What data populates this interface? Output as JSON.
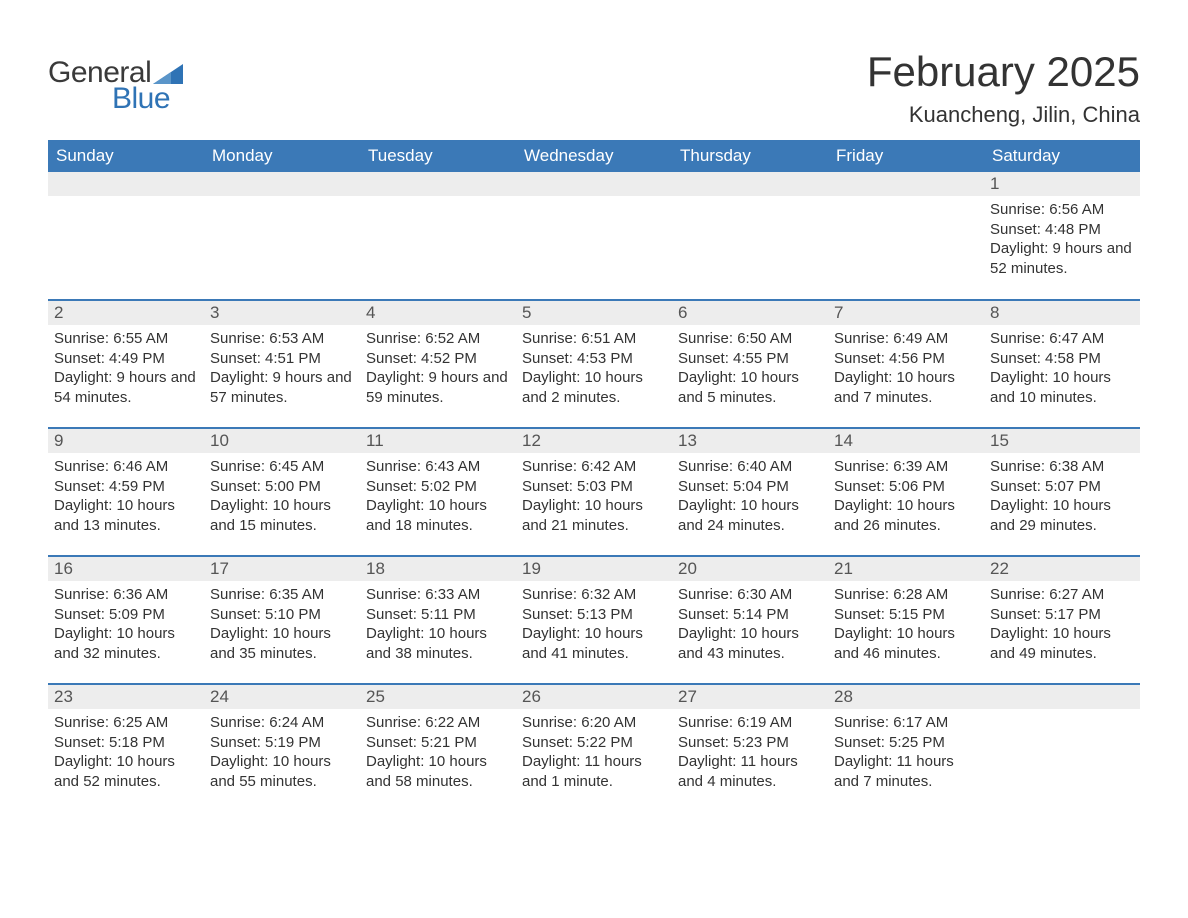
{
  "brand": {
    "word1": "General",
    "word2": "Blue",
    "flag_color": "#2f73b5",
    "word1_color": "#3a3a3a",
    "word2_color": "#2f73b5"
  },
  "header": {
    "month_title": "February 2025",
    "location": "Kuancheng, Jilin, China"
  },
  "styling": {
    "header_bg": "#3b79b7",
    "header_text": "#ffffff",
    "row_divider": "#3b79b7",
    "daynum_bg": "#ededed",
    "body_bg": "#ffffff",
    "text_color": "#333333",
    "title_fontsize": 42,
    "location_fontsize": 22,
    "weekday_fontsize": 17,
    "body_fontsize": 15,
    "columns": 7
  },
  "weekdays": [
    "Sunday",
    "Monday",
    "Tuesday",
    "Wednesday",
    "Thursday",
    "Friday",
    "Saturday"
  ],
  "labels": {
    "sunrise_prefix": "Sunrise: ",
    "sunset_prefix": "Sunset: ",
    "daylight_prefix": "Daylight: "
  },
  "weeks": [
    [
      null,
      null,
      null,
      null,
      null,
      null,
      {
        "day": "1",
        "sunrise": "6:56 AM",
        "sunset": "4:48 PM",
        "daylight": "9 hours and 52 minutes."
      }
    ],
    [
      {
        "day": "2",
        "sunrise": "6:55 AM",
        "sunset": "4:49 PM",
        "daylight": "9 hours and 54 minutes."
      },
      {
        "day": "3",
        "sunrise": "6:53 AM",
        "sunset": "4:51 PM",
        "daylight": "9 hours and 57 minutes."
      },
      {
        "day": "4",
        "sunrise": "6:52 AM",
        "sunset": "4:52 PM",
        "daylight": "9 hours and 59 minutes."
      },
      {
        "day": "5",
        "sunrise": "6:51 AM",
        "sunset": "4:53 PM",
        "daylight": "10 hours and 2 minutes."
      },
      {
        "day": "6",
        "sunrise": "6:50 AM",
        "sunset": "4:55 PM",
        "daylight": "10 hours and 5 minutes."
      },
      {
        "day": "7",
        "sunrise": "6:49 AM",
        "sunset": "4:56 PM",
        "daylight": "10 hours and 7 minutes."
      },
      {
        "day": "8",
        "sunrise": "6:47 AM",
        "sunset": "4:58 PM",
        "daylight": "10 hours and 10 minutes."
      }
    ],
    [
      {
        "day": "9",
        "sunrise": "6:46 AM",
        "sunset": "4:59 PM",
        "daylight": "10 hours and 13 minutes."
      },
      {
        "day": "10",
        "sunrise": "6:45 AM",
        "sunset": "5:00 PM",
        "daylight": "10 hours and 15 minutes."
      },
      {
        "day": "11",
        "sunrise": "6:43 AM",
        "sunset": "5:02 PM",
        "daylight": "10 hours and 18 minutes."
      },
      {
        "day": "12",
        "sunrise": "6:42 AM",
        "sunset": "5:03 PM",
        "daylight": "10 hours and 21 minutes."
      },
      {
        "day": "13",
        "sunrise": "6:40 AM",
        "sunset": "5:04 PM",
        "daylight": "10 hours and 24 minutes."
      },
      {
        "day": "14",
        "sunrise": "6:39 AM",
        "sunset": "5:06 PM",
        "daylight": "10 hours and 26 minutes."
      },
      {
        "day": "15",
        "sunrise": "6:38 AM",
        "sunset": "5:07 PM",
        "daylight": "10 hours and 29 minutes."
      }
    ],
    [
      {
        "day": "16",
        "sunrise": "6:36 AM",
        "sunset": "5:09 PM",
        "daylight": "10 hours and 32 minutes."
      },
      {
        "day": "17",
        "sunrise": "6:35 AM",
        "sunset": "5:10 PM",
        "daylight": "10 hours and 35 minutes."
      },
      {
        "day": "18",
        "sunrise": "6:33 AM",
        "sunset": "5:11 PM",
        "daylight": "10 hours and 38 minutes."
      },
      {
        "day": "19",
        "sunrise": "6:32 AM",
        "sunset": "5:13 PM",
        "daylight": "10 hours and 41 minutes."
      },
      {
        "day": "20",
        "sunrise": "6:30 AM",
        "sunset": "5:14 PM",
        "daylight": "10 hours and 43 minutes."
      },
      {
        "day": "21",
        "sunrise": "6:28 AM",
        "sunset": "5:15 PM",
        "daylight": "10 hours and 46 minutes."
      },
      {
        "day": "22",
        "sunrise": "6:27 AM",
        "sunset": "5:17 PM",
        "daylight": "10 hours and 49 minutes."
      }
    ],
    [
      {
        "day": "23",
        "sunrise": "6:25 AM",
        "sunset": "5:18 PM",
        "daylight": "10 hours and 52 minutes."
      },
      {
        "day": "24",
        "sunrise": "6:24 AM",
        "sunset": "5:19 PM",
        "daylight": "10 hours and 55 minutes."
      },
      {
        "day": "25",
        "sunrise": "6:22 AM",
        "sunset": "5:21 PM",
        "daylight": "10 hours and 58 minutes."
      },
      {
        "day": "26",
        "sunrise": "6:20 AM",
        "sunset": "5:22 PM",
        "daylight": "11 hours and 1 minute."
      },
      {
        "day": "27",
        "sunrise": "6:19 AM",
        "sunset": "5:23 PM",
        "daylight": "11 hours and 4 minutes."
      },
      {
        "day": "28",
        "sunrise": "6:17 AM",
        "sunset": "5:25 PM",
        "daylight": "11 hours and 7 minutes."
      },
      null
    ]
  ]
}
